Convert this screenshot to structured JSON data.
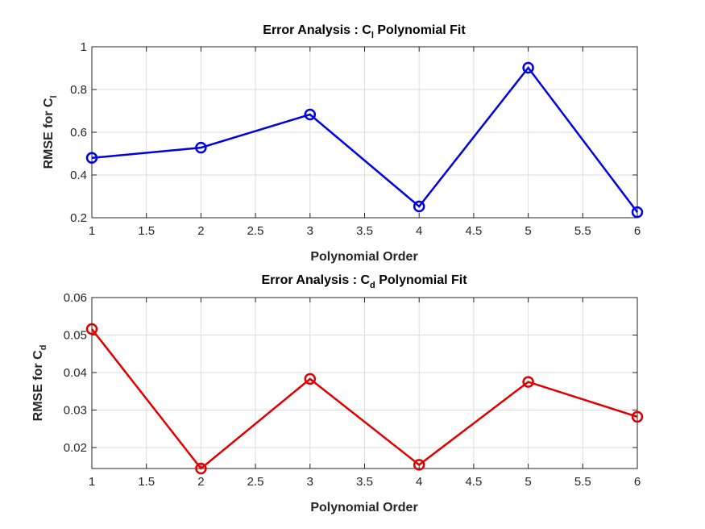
{
  "chart_data": [
    {
      "type": "line",
      "title": "Error Analysis : C_l Polynomial Fit",
      "title_main": "Error Analysis : C",
      "title_sub": "l",
      "title_tail": " Polynomial Fit",
      "xlabel": "Polynomial Order",
      "ylabel": "RMSE for C_l",
      "ylabel_main": "RMSE for C",
      "ylabel_sub": "l",
      "x": [
        1,
        2,
        3,
        4,
        5,
        6
      ],
      "series": [
        {
          "name": "RMSE C_l",
          "color": "#0000e0",
          "marker": "circle",
          "values": [
            0.48,
            0.528,
            0.683,
            0.253,
            0.902,
            0.226
          ]
        }
      ],
      "xlim": [
        1,
        6
      ],
      "ylim": [
        0.2,
        1
      ],
      "xticks": [
        "1",
        "1.5",
        "2",
        "2.5",
        "3",
        "3.5",
        "4",
        "4.5",
        "5",
        "5.5",
        "6"
      ],
      "yticks": [
        "0.2",
        "0.4",
        "0.6",
        "0.8",
        "1"
      ],
      "grid": true
    },
    {
      "type": "line",
      "title": "Error Analysis : C_d Polynomial Fit",
      "title_main": "Error Analysis : C",
      "title_sub": "d",
      "title_tail": " Polynomial Fit",
      "xlabel": "Polynomial Order",
      "ylabel": "RMSE for C_d",
      "ylabel_main": "RMSE for C",
      "ylabel_sub": "d",
      "x": [
        1,
        2,
        3,
        4,
        5,
        6
      ],
      "series": [
        {
          "name": "RMSE C_d",
          "color": "#e00000",
          "marker": "circle",
          "values": [
            0.0516,
            0.0144,
            0.0383,
            0.0154,
            0.0375,
            0.0282
          ]
        }
      ],
      "xlim": [
        1,
        6
      ],
      "ylim": [
        0.0144,
        0.06
      ],
      "xticks": [
        "1",
        "1.5",
        "2",
        "2.5",
        "3",
        "3.5",
        "4",
        "4.5",
        "5",
        "5.5",
        "6"
      ],
      "yticks": [
        "0.02",
        "0.03",
        "0.04",
        "0.05",
        "0.06"
      ],
      "grid": true
    }
  ]
}
